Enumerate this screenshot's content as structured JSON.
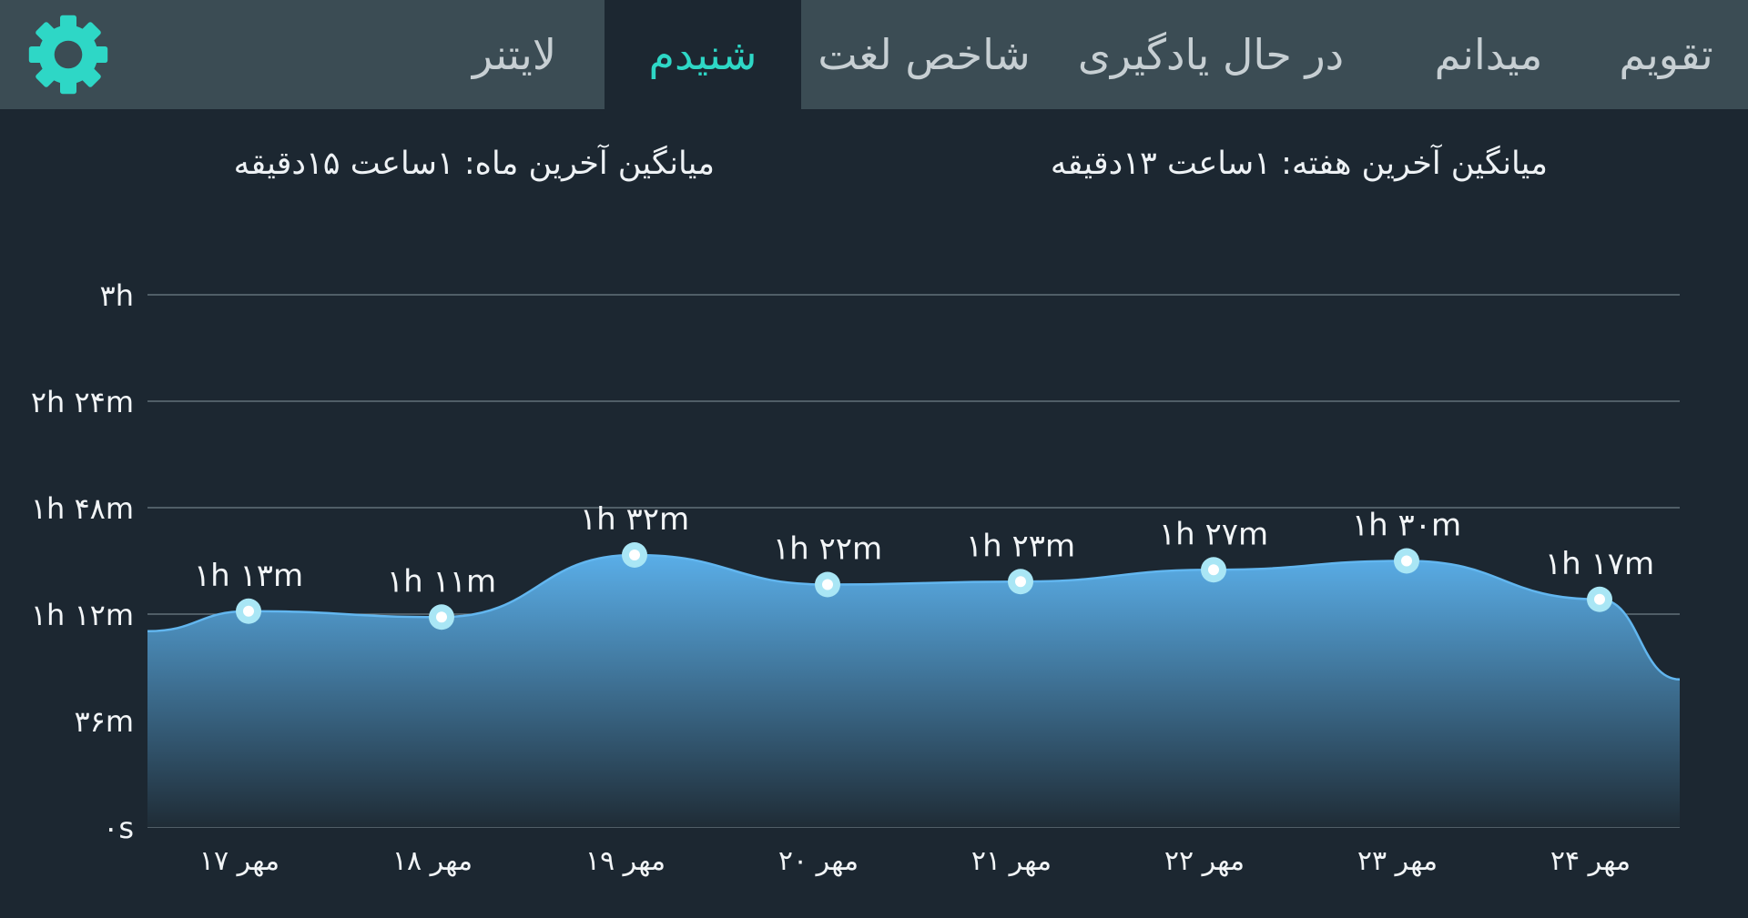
{
  "tabs": [
    {
      "key": "calendar",
      "label": "تقویم",
      "active": false
    },
    {
      "key": "known",
      "label": "میدانم",
      "active": false
    },
    {
      "key": "learning",
      "label": "در حال یادگیری",
      "active": false
    },
    {
      "key": "word_index",
      "label": "شاخص لغت",
      "active": false
    },
    {
      "key": "listened",
      "label": "شنیدم",
      "active": true
    },
    {
      "key": "leitner",
      "label": "لایتنر",
      "active": false
    }
  ],
  "settings": {
    "icon": "gear-icon",
    "color": "#2ed7c6"
  },
  "stats": {
    "week_label": "میانگین آخرین هفته:",
    "week_value": "۱ساعت  ۱۳دقیقه",
    "month_label": "میانگین آخرین ماه:",
    "month_value": "۱ساعت  ۱۵دقیقه"
  },
  "colors": {
    "background": "#1c2731",
    "tab_bar": "#3b4c54",
    "accent": "#2ed7c6",
    "area_top": "#5aaee8",
    "area_bottom": "#1f2c36"
  },
  "chart_data": {
    "type": "area",
    "y_unit": "minutes",
    "ylim": [
      0,
      180
    ],
    "yticks": [
      0,
      36,
      72,
      108,
      144,
      180
    ],
    "ytick_labels": [
      "۰s",
      "۳۶m",
      "۱h ۱۲m",
      "۱h ۴۸m",
      "۲h ۲۴m",
      "۳h"
    ],
    "grid": true,
    "categories": [
      "۱۷ مهر",
      "۱۸ مهر",
      "۱۹ مهر",
      "۲۰ مهر",
      "۲۱ مهر",
      "۲۲ مهر",
      "۲۳ مهر",
      "۲۴ مهر"
    ],
    "values": [
      73,
      71,
      92,
      82,
      83,
      87,
      90,
      77
    ],
    "value_labels": [
      "۱h ۱۳m",
      "۱h ۱۱m",
      "۱h ۳۲m",
      "۱h ۲۲m",
      "۱h ۲۳m",
      "۱h ۲۷m",
      "۱h ۳۰m",
      "۱h ۱۷m"
    ]
  }
}
